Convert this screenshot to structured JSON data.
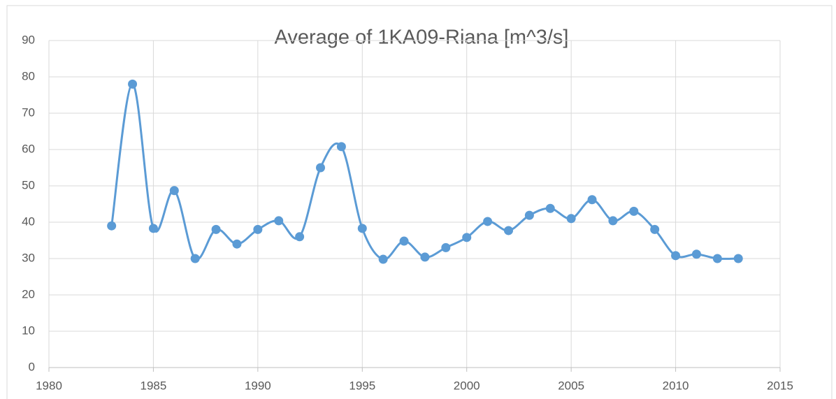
{
  "chart_data": {
    "type": "line",
    "title": "Average of 1KA09-Riana [m^3/s]",
    "x": [
      1983,
      1984,
      1985,
      1986,
      1987,
      1988,
      1989,
      1990,
      1991,
      1992,
      1993,
      1994,
      1995,
      1996,
      1997,
      1998,
      1999,
      2000,
      2001,
      2002,
      2003,
      2004,
      2005,
      2006,
      2007,
      2008,
      2009,
      2010,
      2011,
      2012,
      2013
    ],
    "series": [
      {
        "name": "Average of 1KA09-Riana [m^3/s]",
        "color": "#5b9bd5",
        "values": [
          39,
          78,
          38.3,
          48.7,
          30,
          38,
          34,
          38,
          40.4,
          36,
          55,
          60.8,
          38.3,
          29.8,
          34.8,
          30.4,
          33,
          35.8,
          40.2,
          37.7,
          41.9,
          43.8,
          41,
          46.2,
          40.4,
          43,
          38,
          30.8,
          31.2,
          30,
          30
        ]
      }
    ],
    "xlim": [
      1980,
      2015
    ],
    "xticks": [
      1980,
      1985,
      1990,
      1995,
      2000,
      2005,
      2010,
      2015
    ],
    "ylim": [
      0,
      90
    ],
    "yticks": [
      0,
      10,
      20,
      30,
      40,
      50,
      60,
      70,
      80,
      90
    ],
    "grid": true,
    "smooth": true
  }
}
